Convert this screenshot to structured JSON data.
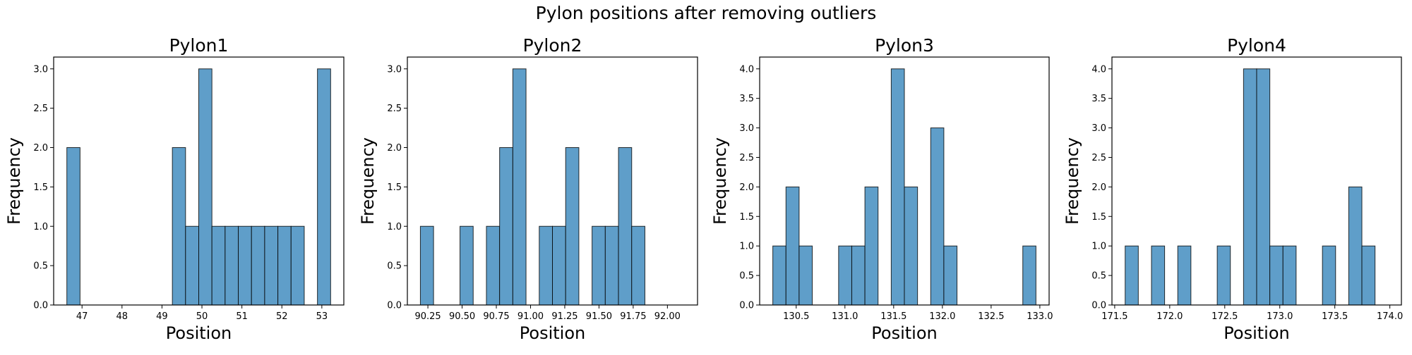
{
  "figure": {
    "title": "Pylon positions after removing outliers"
  },
  "colors": {
    "bar_fill": "#5f9ec9",
    "bar_edge": "#000000"
  },
  "chart_data": [
    {
      "type": "bar",
      "title": "Pylon1",
      "xlabel": "Position",
      "ylabel": "Frequency",
      "bin_edges": [
        46.62,
        46.95,
        47.28,
        47.61,
        47.94,
        48.27,
        48.6,
        48.93,
        49.26,
        49.59,
        49.92,
        50.25,
        50.58,
        50.91,
        51.24,
        51.57,
        51.9,
        52.23,
        52.56,
        52.89,
        53.22
      ],
      "values": [
        2,
        0,
        0,
        0,
        0,
        0,
        0,
        0,
        2,
        1,
        3,
        1,
        1,
        1,
        1,
        1,
        1,
        1,
        0,
        3
      ],
      "xlim": [
        46.29,
        53.55
      ],
      "ylim": [
        0,
        3.15
      ],
      "xticks": [
        47,
        48,
        49,
        50,
        51,
        52,
        53
      ],
      "xtick_labels": [
        "47",
        "48",
        "49",
        "50",
        "51",
        "52",
        "53"
      ],
      "yticks": [
        0,
        0.5,
        1,
        1.5,
        2,
        2.5,
        3
      ],
      "ytick_labels": [
        "0.0",
        "0.5",
        "1.0",
        "1.5",
        "2.0",
        "2.5",
        "3.0"
      ]
    },
    {
      "type": "bar",
      "title": "Pylon2",
      "xlabel": "Position",
      "ylabel": "Frequency",
      "bin_edges": [
        90.195,
        90.2915,
        90.388,
        90.4845,
        90.581,
        90.6775,
        90.774,
        90.8705,
        90.967,
        91.0635,
        91.16,
        91.2565,
        91.353,
        91.4495,
        91.546,
        91.6425,
        91.739,
        91.8355,
        91.932,
        92.0285,
        92.125
      ],
      "values": [
        1,
        0,
        0,
        1,
        0,
        1,
        2,
        3,
        0,
        1,
        1,
        2,
        0,
        1,
        1,
        2,
        1,
        0,
        0,
        0
      ],
      "xlim": [
        90.1,
        92.22
      ],
      "ylim": [
        0,
        3.15
      ],
      "xticks": [
        90.25,
        90.5,
        90.75,
        91.0,
        91.25,
        91.5,
        91.75,
        92.0
      ],
      "xtick_labels": [
        "90.25",
        "90.50",
        "90.75",
        "91.00",
        "91.25",
        "91.50",
        "91.75",
        "92.00"
      ],
      "yticks": [
        0,
        0.5,
        1,
        1.5,
        2,
        2.5,
        3
      ],
      "ytick_labels": [
        "0.0",
        "0.5",
        "1.0",
        "1.5",
        "2.0",
        "2.5",
        "3.0"
      ]
    },
    {
      "type": "bar",
      "title": "Pylon3",
      "xlabel": "Position",
      "ylabel": "Frequency",
      "bin_edges": [
        130.26,
        130.395,
        130.53,
        130.665,
        130.8,
        130.935,
        131.07,
        131.205,
        131.34,
        131.475,
        131.61,
        131.745,
        131.88,
        132.015,
        132.15,
        132.285,
        132.42,
        132.555,
        132.69,
        132.825,
        132.96
      ],
      "values": [
        1,
        2,
        1,
        0,
        0,
        1,
        1,
        2,
        0,
        4,
        2,
        0,
        3,
        1,
        0,
        0,
        0,
        0,
        0,
        1
      ],
      "xlim": [
        130.125,
        133.095
      ],
      "ylim": [
        0,
        4.2
      ],
      "xticks": [
        130.5,
        131.0,
        131.5,
        132.0,
        132.5,
        133.0
      ],
      "xtick_labels": [
        "130.5",
        "131.0",
        "131.5",
        "132.0",
        "132.5",
        "133.0"
      ],
      "yticks": [
        0,
        0.5,
        1,
        1.5,
        2,
        2.5,
        3,
        3.5,
        4
      ],
      "ytick_labels": [
        "0.0",
        "0.5",
        "1.0",
        "1.5",
        "2.0",
        "2.5",
        "3.0",
        "3.5",
        "4.0"
      ]
    },
    {
      "type": "bar",
      "title": "Pylon4",
      "xlabel": "Position",
      "ylabel": "Frequency",
      "bin_edges": [
        171.595,
        171.7145,
        171.834,
        171.9535,
        172.073,
        172.1925,
        172.312,
        172.4315,
        172.551,
        172.6705,
        172.79,
        172.9095,
        173.029,
        173.1485,
        173.268,
        173.3875,
        173.507,
        173.6265,
        173.746,
        173.8655,
        173.985
      ],
      "values": [
        1,
        0,
        1,
        0,
        1,
        0,
        0,
        1,
        0,
        4,
        4,
        1,
        1,
        0,
        0,
        1,
        0,
        2,
        1,
        0
      ],
      "xlim": [
        171.475,
        174.105
      ],
      "ylim": [
        0,
        4.2
      ],
      "xticks": [
        171.5,
        172.0,
        172.5,
        173.0,
        173.5,
        174.0
      ],
      "xtick_labels": [
        "171.5",
        "172.0",
        "172.5",
        "173.0",
        "173.5",
        "174.0"
      ],
      "yticks": [
        0,
        0.5,
        1,
        1.5,
        2,
        2.5,
        3,
        3.5,
        4
      ],
      "ytick_labels": [
        "0.0",
        "0.5",
        "1.0",
        "1.5",
        "2.0",
        "2.5",
        "3.0",
        "3.5",
        "4.0"
      ]
    }
  ]
}
